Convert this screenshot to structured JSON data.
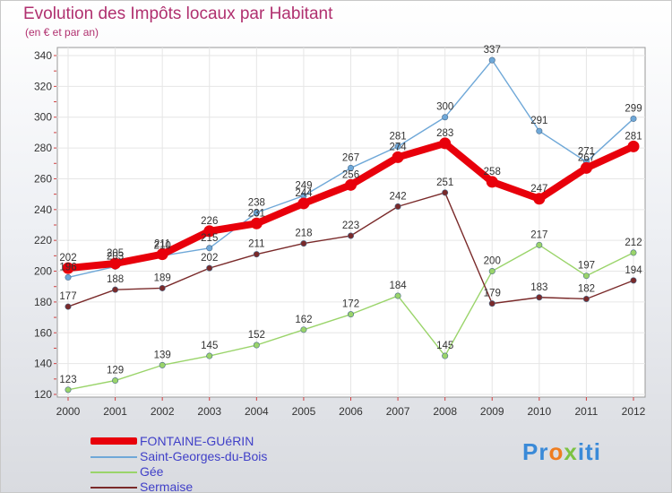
{
  "header": {
    "title": "Evolution des Impôts locaux par Habitant",
    "subtitle": "(en € et par an)"
  },
  "logo": {
    "text": "Proxiti"
  },
  "colors": {
    "fontaine": "#e8000b",
    "saint_georges": "#6fa8d8",
    "gee": "#9ad46a",
    "sermaise": "#7a2a2a"
  },
  "chart_data": {
    "type": "line",
    "title": "Evolution des Impôts locaux par Habitant",
    "subtitle": "(en € et par an)",
    "xlabel": "",
    "ylabel": "",
    "x": [
      "2000",
      "2001",
      "2002",
      "2003",
      "2004",
      "2005",
      "2006",
      "2007",
      "2008",
      "2009",
      "2010",
      "2011",
      "2012"
    ],
    "ylim": [
      120,
      340
    ],
    "yticks": [
      120,
      140,
      160,
      180,
      200,
      220,
      240,
      260,
      280,
      300,
      320,
      340
    ],
    "grid": true,
    "legend_position": "bottom-left",
    "series": [
      {
        "name": "FONTAINE-GUéRIN",
        "color": "#e8000b",
        "values": [
          202,
          205,
          211,
          226,
          231,
          244,
          256,
          274,
          283,
          258,
          247,
          267,
          281
        ]
      },
      {
        "name": "Saint-Georges-du-Bois",
        "color": "#6fa8d8",
        "values": [
          196,
          203,
          210,
          215,
          238,
          249,
          267,
          281,
          300,
          337,
          291,
          271,
          299
        ]
      },
      {
        "name": "Gée",
        "color": "#9ad46a",
        "values": [
          123,
          129,
          139,
          145,
          152,
          162,
          172,
          184,
          145,
          200,
          217,
          197,
          212
        ]
      },
      {
        "name": "Sermaise",
        "color": "#7a2a2a",
        "values": [
          177,
          188,
          189,
          202,
          211,
          218,
          223,
          242,
          251,
          179,
          183,
          182,
          194
        ]
      }
    ]
  }
}
